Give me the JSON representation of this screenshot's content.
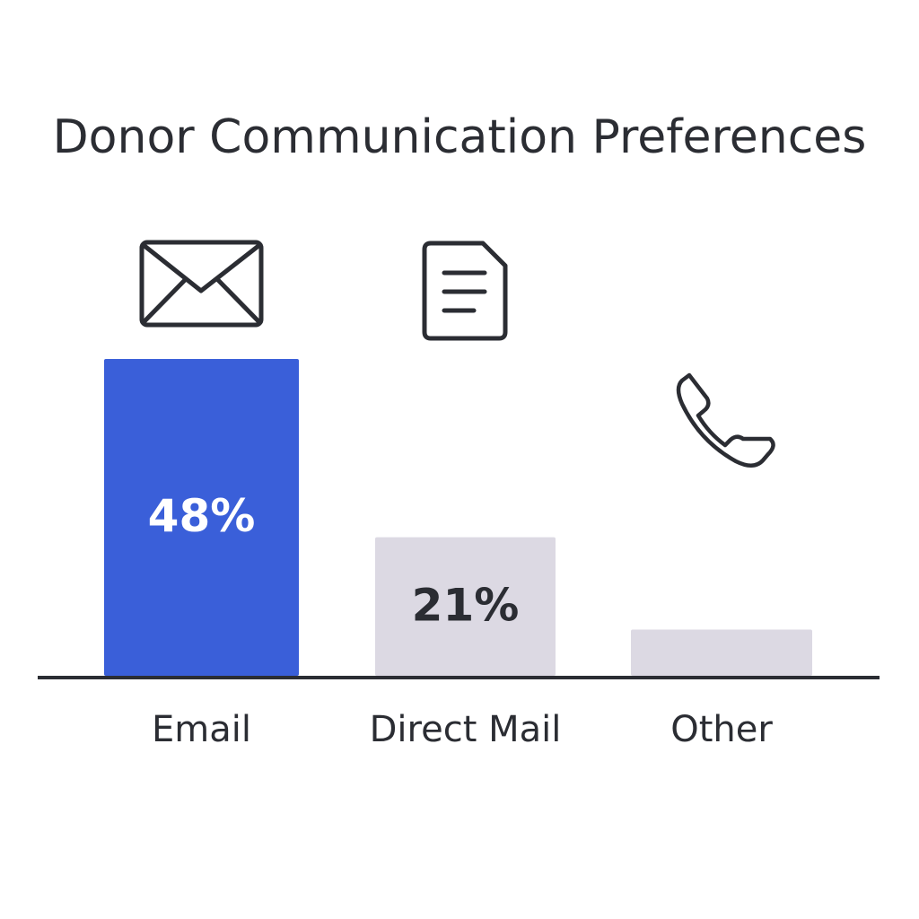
{
  "chart_data": {
    "type": "bar",
    "title": "Donor Communication Preferences",
    "categories": [
      "Email",
      "Direct Mail",
      "Other"
    ],
    "values": [
      48,
      21,
      7
    ],
    "value_labels": [
      "48%",
      "21%",
      null
    ],
    "colors": [
      "#3a5fd9",
      "#dcd9e3",
      "#dcd9e3"
    ]
  }
}
